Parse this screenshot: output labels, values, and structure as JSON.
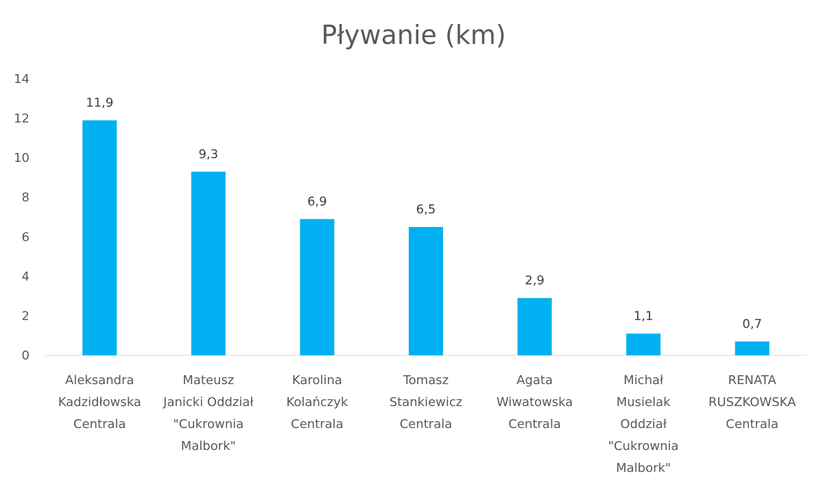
{
  "chart_data": {
    "type": "bar",
    "title": "Pływanie (km)",
    "xlabel": "",
    "ylabel": "",
    "ylim": [
      0,
      14
    ],
    "yticks": [
      0,
      2,
      4,
      6,
      8,
      10,
      12,
      14
    ],
    "grid": false,
    "legend": "none",
    "bar_color": "#00B0F0",
    "categories": [
      [
        "Aleksandra",
        "Kadzidłowska",
        "Centrala"
      ],
      [
        "Mateusz",
        "Janicki Oddział",
        "\"Cukrownia",
        "Malbork\""
      ],
      [
        "Karolina",
        "Kolańczyk",
        "Centrala"
      ],
      [
        "Tomasz",
        "Stankiewicz",
        "Centrala"
      ],
      [
        "Agata",
        "Wiwatowska",
        "Centrala"
      ],
      [
        "Michał",
        "Musielak",
        "Oddział",
        "\"Cukrownia",
        "Malbork\""
      ],
      [
        "RENATA",
        "RUSZKOWSKA",
        "Centrala"
      ]
    ],
    "values": [
      11.9,
      9.3,
      6.9,
      6.5,
      2.9,
      1.1,
      0.7
    ],
    "data_labels": [
      "11,9",
      "9,3",
      "6,9",
      "6,5",
      "2,9",
      "1,1",
      "0,7"
    ]
  }
}
